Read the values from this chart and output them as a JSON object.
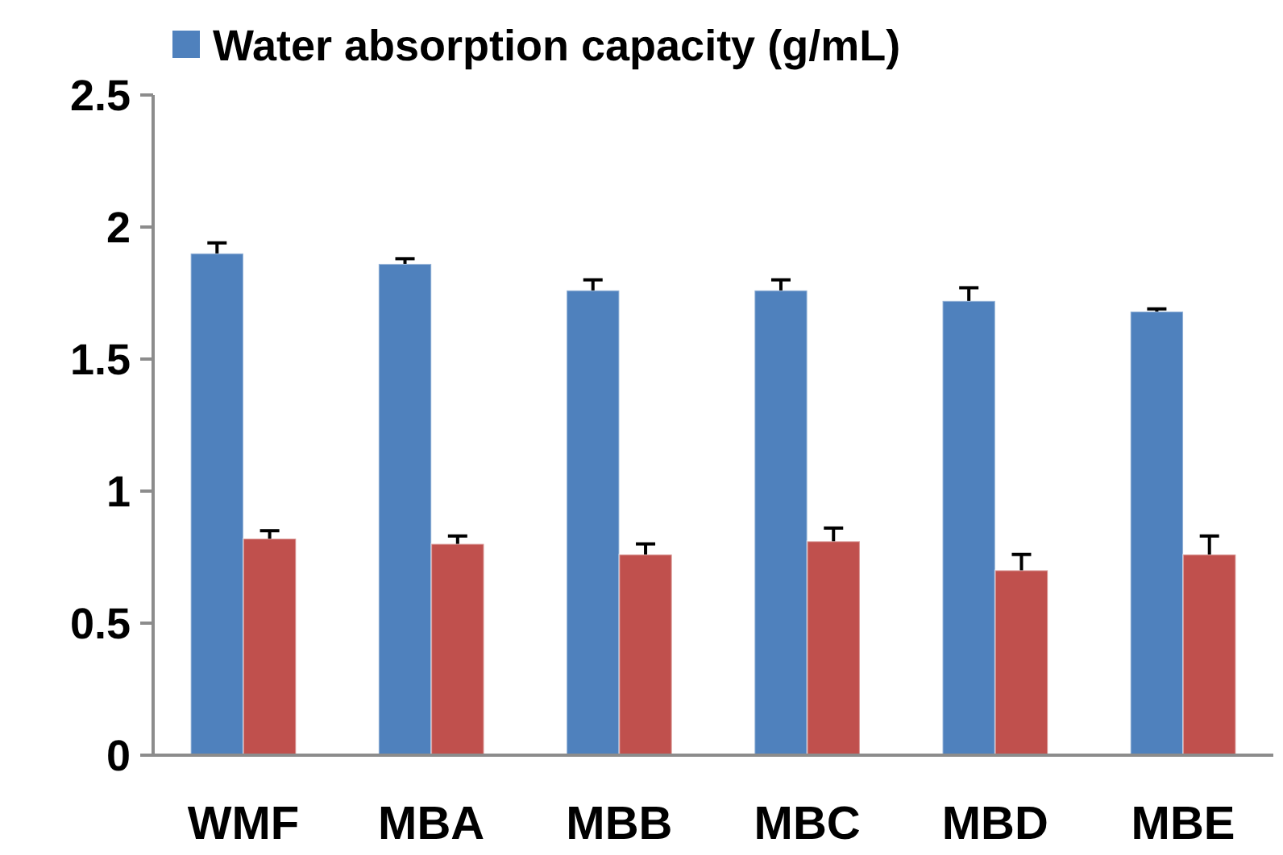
{
  "chart_data": {
    "type": "bar",
    "categories": [
      "WMF",
      "MBA",
      "MBB",
      "MBC",
      "MBD",
      "MBE"
    ],
    "series": [
      {
        "name": "Water absorption capacity (g/mL)",
        "color": "#4f81bd",
        "values": [
          1.9,
          1.86,
          1.76,
          1.76,
          1.72,
          1.68
        ],
        "errors": [
          0.04,
          0.02,
          0.04,
          0.04,
          0.05,
          0.01
        ]
      },
      {
        "color": "#c0504d",
        "values": [
          0.82,
          0.8,
          0.76,
          0.81,
          0.7,
          0.76
        ],
        "errors": [
          0.03,
          0.03,
          0.04,
          0.05,
          0.06,
          0.07
        ]
      }
    ],
    "ylim": [
      0,
      2.5
    ],
    "yticks": [
      0,
      0.5,
      1,
      1.5,
      2,
      2.5
    ],
    "grid": false,
    "legend": "top"
  }
}
